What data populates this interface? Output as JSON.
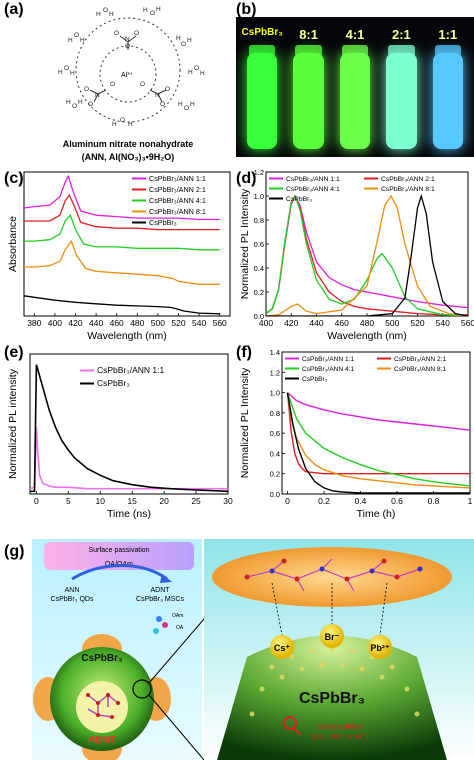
{
  "panels": {
    "a": {
      "label": "(a)",
      "caption_line1": "Aluminum nitrate nonahydrate",
      "caption_line2": "(ANN, Al(NO₃)₃•9H₂O)",
      "al_label": "Al³⁺"
    },
    "b": {
      "label": "(b)",
      "vials": [
        "CsPbBr₃",
        "8:1",
        "4:1",
        "2:1",
        "1:1"
      ],
      "vial_colors": [
        "#39ff3a",
        "#58ff3a",
        "#6cff4a",
        "#7dffd0",
        "#56c8ff"
      ]
    },
    "c": {
      "label": "(c)"
    },
    "d": {
      "label": "(d)"
    },
    "e": {
      "label": "(e)"
    },
    "f": {
      "label": "(f)"
    },
    "g": {
      "label": "(g)",
      "surface_passivation": "Surface passivation",
      "oa_oam": "OA/OAm",
      "ann": "ANN",
      "ann_qds": "CsPbBr₃ QDs",
      "adnt": "ADNT",
      "adnt_mscs": "CsPbBr₃ MSCs",
      "oam": "OAm",
      "oa": "OA",
      "sphere_label": "CsPbBr₃",
      "core_label": "ADNT",
      "ion_cs": "Cs⁺",
      "ion_br": "Br⁻",
      "ion_pb": "Pb²⁺",
      "big_label": "CsPbBr₃",
      "defect_line1": "Surface defect",
      "defect_line2": "(Cs⁺, Pb²⁺ or Br⁻)"
    }
  },
  "chart_data": [
    {
      "panel": "c",
      "type": "line",
      "xlabel": "Wavelength (nm)",
      "ylabel": "Absorbance",
      "xlim": [
        370,
        570
      ],
      "ylim": [
        0,
        1
      ],
      "xticks": [
        380,
        400,
        420,
        440,
        460,
        480,
        500,
        520,
        540,
        560
      ],
      "legend": "top-right",
      "series": [
        {
          "name": "CsPbBr₃/ANN 1:1",
          "color": "#e020e0",
          "x": [
            370,
            380,
            395,
            405,
            410,
            413,
            418,
            425,
            440,
            460,
            480,
            500,
            520,
            540,
            560
          ],
          "y": [
            0.75,
            0.76,
            0.77,
            0.83,
            0.93,
            0.97,
            0.86,
            0.73,
            0.7,
            0.69,
            0.68,
            0.68,
            0.68,
            0.67,
            0.67
          ]
        },
        {
          "name": "CsPbBr₃/ANN 2:1",
          "color": "#e02020",
          "x": [
            370,
            380,
            395,
            405,
            410,
            414,
            419,
            425,
            440,
            460,
            480,
            500,
            520,
            540,
            560
          ],
          "y": [
            0.66,
            0.66,
            0.66,
            0.7,
            0.8,
            0.84,
            0.76,
            0.65,
            0.62,
            0.61,
            0.61,
            0.6,
            0.6,
            0.6,
            0.6
          ]
        },
        {
          "name": "CsPbBr₃/ANN 4:1",
          "color": "#20d020",
          "x": [
            370,
            380,
            395,
            405,
            410,
            415,
            420,
            428,
            440,
            460,
            480,
            500,
            520,
            540,
            560
          ],
          "y": [
            0.52,
            0.52,
            0.53,
            0.57,
            0.66,
            0.7,
            0.6,
            0.5,
            0.48,
            0.48,
            0.47,
            0.47,
            0.47,
            0.46,
            0.46
          ]
        },
        {
          "name": "CsPbBr₃/ANN 8:1",
          "color": "#f08c10",
          "x": [
            370,
            380,
            395,
            405,
            410,
            416,
            421,
            430,
            440,
            460,
            480,
            500,
            515,
            520,
            540,
            560
          ],
          "y": [
            0.34,
            0.34,
            0.35,
            0.38,
            0.46,
            0.52,
            0.42,
            0.33,
            0.31,
            0.3,
            0.29,
            0.28,
            0.26,
            0.24,
            0.22,
            0.22
          ]
        },
        {
          "name": "CsPbBr₃",
          "color": "#000000",
          "x": [
            370,
            380,
            400,
            420,
            440,
            460,
            480,
            500,
            512,
            518,
            525,
            540,
            560
          ],
          "y": [
            0.14,
            0.13,
            0.11,
            0.095,
            0.085,
            0.075,
            0.07,
            0.065,
            0.06,
            0.05,
            0.035,
            0.02,
            0.015
          ]
        }
      ]
    },
    {
      "panel": "d",
      "type": "line",
      "xlabel": "Wavelength (nm)",
      "ylabel": "Normalized PL Intensity",
      "xlim": [
        400,
        560
      ],
      "ylim": [
        0,
        1.2
      ],
      "xticks": [
        400,
        420,
        440,
        460,
        480,
        500,
        520,
        540,
        560
      ],
      "yticks": [
        0.0,
        0.2,
        0.4,
        0.6,
        0.8,
        1.0,
        1.2
      ],
      "legend": "top",
      "series": [
        {
          "name": "CsPbBr₃/ANN 1:1",
          "color": "#e020e0",
          "x": [
            400,
            405,
            410,
            415,
            420,
            423,
            427,
            432,
            440,
            450,
            460,
            470,
            480,
            500,
            520,
            540,
            560
          ],
          "y": [
            0.02,
            0.06,
            0.22,
            0.6,
            0.93,
            1.0,
            0.92,
            0.7,
            0.45,
            0.32,
            0.26,
            0.22,
            0.2,
            0.16,
            0.12,
            0.09,
            0.07
          ]
        },
        {
          "name": "CsPbBr₃/ANN 2:1",
          "color": "#e02020",
          "x": [
            400,
            405,
            410,
            415,
            420,
            423,
            427,
            432,
            440,
            450,
            460,
            470,
            480,
            500,
            520,
            540,
            560
          ],
          "y": [
            0.02,
            0.06,
            0.22,
            0.62,
            0.95,
            1.0,
            0.9,
            0.64,
            0.36,
            0.2,
            0.12,
            0.08,
            0.06,
            0.04,
            0.02,
            0.01,
            0.01
          ]
        },
        {
          "name": "CsPbBr₃/ANN 4:1",
          "color": "#20d020",
          "x": [
            400,
            405,
            410,
            415,
            420,
            423,
            427,
            432,
            440,
            450,
            460,
            470,
            480,
            488,
            492,
            500,
            510,
            520,
            540,
            560
          ],
          "y": [
            0.02,
            0.06,
            0.22,
            0.62,
            0.95,
            1.0,
            0.88,
            0.6,
            0.3,
            0.14,
            0.1,
            0.14,
            0.3,
            0.48,
            0.52,
            0.4,
            0.16,
            0.06,
            0.01,
            0.0
          ]
        },
        {
          "name": "CsPbBr₃/ANN 8:1",
          "color": "#f08c10",
          "x": [
            400,
            410,
            420,
            425,
            432,
            440,
            460,
            480,
            488,
            494,
            499,
            504,
            510,
            520,
            530,
            545,
            560
          ],
          "y": [
            0,
            0.01,
            0.08,
            0.1,
            0.04,
            0.02,
            0.05,
            0.25,
            0.62,
            0.92,
            1.0,
            0.9,
            0.6,
            0.25,
            0.08,
            0.02,
            0.0
          ]
        },
        {
          "name": "CsPbBr₃",
          "color": "#000000",
          "x": [
            400,
            480,
            500,
            510,
            515,
            520,
            523,
            527,
            532,
            540,
            550,
            560
          ],
          "y": [
            0,
            0,
            0.02,
            0.15,
            0.5,
            0.9,
            1.0,
            0.85,
            0.45,
            0.12,
            0.02,
            0.0
          ]
        }
      ]
    },
    {
      "panel": "e",
      "type": "line",
      "xlabel": "Time (ns)",
      "ylabel": "Normalized PL intensity",
      "xlim": [
        -1,
        30
      ],
      "ylim": [
        0,
        1.05
      ],
      "xticks": [
        0,
        5,
        10,
        15,
        20,
        25,
        30
      ],
      "legend": "top-right",
      "series": [
        {
          "name": "CsPbBr₃/ANN 1:1",
          "color": "#f070f0",
          "x": [
            -1,
            -0.3,
            0,
            0.2,
            0.5,
            1,
            2,
            3,
            5,
            8,
            12,
            16,
            20,
            25,
            30
          ],
          "y": [
            0.04,
            0.05,
            0.5,
            0.32,
            0.14,
            0.08,
            0.06,
            0.05,
            0.05,
            0.04,
            0.04,
            0.04,
            0.04,
            0.04,
            0.04
          ]
        },
        {
          "name": "CsPbBr₃",
          "color": "#000000",
          "x": [
            -1,
            -0.3,
            0,
            0.3,
            1,
            2,
            3,
            4,
            5,
            6,
            8,
            10,
            12,
            15,
            18,
            21,
            25,
            30
          ],
          "y": [
            0.02,
            0.02,
            0.97,
            0.92,
            0.8,
            0.63,
            0.5,
            0.4,
            0.33,
            0.27,
            0.19,
            0.14,
            0.1,
            0.07,
            0.05,
            0.04,
            0.03,
            0.02
          ]
        }
      ]
    },
    {
      "panel": "f",
      "type": "line",
      "xlabel": "Time (h)",
      "ylabel": "Normalized PL Intensity",
      "xlim": [
        -0.03,
        1.0
      ],
      "ylim": [
        0,
        1.4
      ],
      "xticks": [
        0.0,
        0.2,
        0.4,
        0.6,
        0.8,
        1.0
      ],
      "yticks": [
        0.0,
        0.2,
        0.4,
        0.6,
        0.8,
        1.0,
        1.2,
        1.4
      ],
      "legend": "top",
      "series": [
        {
          "name": "CsPbBr₃/ANN 1:1",
          "color": "#e020e0",
          "x": [
            0,
            0.05,
            0.1,
            0.2,
            0.3,
            0.4,
            0.5,
            0.6,
            0.7,
            0.8,
            0.9,
            1.0
          ],
          "y": [
            1.0,
            0.92,
            0.88,
            0.83,
            0.79,
            0.76,
            0.73,
            0.71,
            0.69,
            0.67,
            0.65,
            0.63
          ]
        },
        {
          "name": "CsPbBr₃/ANN 2:1",
          "color": "#e02020",
          "x": [
            0,
            0.02,
            0.04,
            0.06,
            0.08,
            0.1,
            0.15,
            0.2,
            0.4,
            0.6,
            0.8,
            1.0
          ],
          "y": [
            1.0,
            0.62,
            0.4,
            0.3,
            0.25,
            0.22,
            0.21,
            0.2,
            0.2,
            0.2,
            0.2,
            0.2
          ]
        },
        {
          "name": "CsPbBr₃/ANN 4:1",
          "color": "#20d020",
          "x": [
            0,
            0.05,
            0.1,
            0.2,
            0.3,
            0.4,
            0.5,
            0.6,
            0.7,
            0.8,
            0.9,
            1.0
          ],
          "y": [
            1.0,
            0.74,
            0.6,
            0.45,
            0.36,
            0.29,
            0.23,
            0.19,
            0.15,
            0.12,
            0.1,
            0.08
          ]
        },
        {
          "name": "CsPbBr₃/ANN 8:1",
          "color": "#f08c10",
          "x": [
            0,
            0.02,
            0.05,
            0.1,
            0.15,
            0.2,
            0.3,
            0.4,
            0.5,
            0.6,
            0.7,
            0.8,
            0.9,
            1.0
          ],
          "y": [
            1.0,
            0.75,
            0.55,
            0.38,
            0.29,
            0.24,
            0.18,
            0.15,
            0.13,
            0.11,
            0.09,
            0.08,
            0.07,
            0.06
          ]
        },
        {
          "name": "CsPbBr₃",
          "color": "#000000",
          "x": [
            0,
            0.03,
            0.06,
            0.1,
            0.15,
            0.2,
            0.25,
            0.3,
            0.4,
            0.6,
            0.8,
            1.0
          ],
          "y": [
            1.0,
            0.68,
            0.45,
            0.25,
            0.12,
            0.06,
            0.03,
            0.02,
            0.01,
            0.01,
            0.01,
            0.01
          ]
        }
      ]
    }
  ]
}
